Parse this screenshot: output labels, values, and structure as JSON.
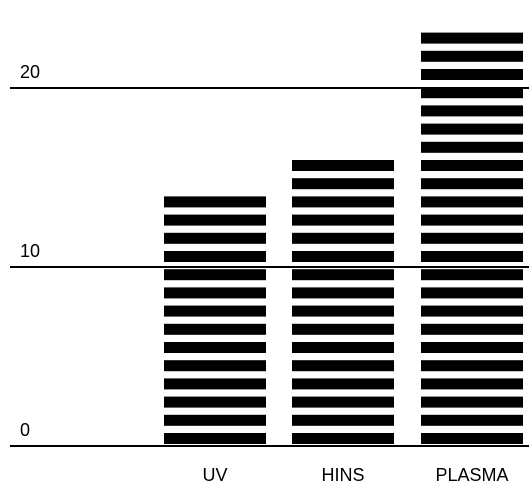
{
  "chart_data": {
    "type": "bar",
    "title": "",
    "xlabel": "",
    "ylabel": "",
    "categories": [
      "UV",
      "HINS",
      "PLASMA"
    ],
    "values": [
      14,
      16,
      24
    ],
    "ylim": [
      0,
      24
    ],
    "yticks": [
      0,
      10,
      20
    ],
    "ytick_labels": [
      "0",
      "10",
      "20"
    ],
    "grid": true,
    "bar_style": "horizontal stripes",
    "colors": {
      "bar": "#000000",
      "gridline": "#000000",
      "text": "#000000",
      "background": "#ffffff"
    }
  }
}
